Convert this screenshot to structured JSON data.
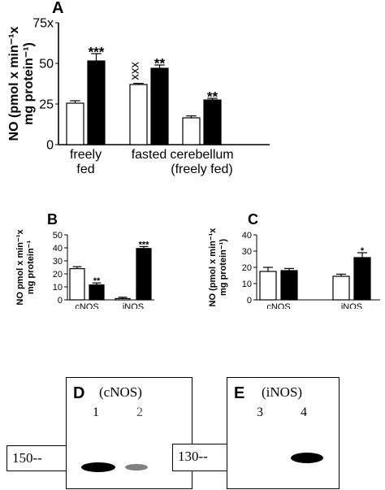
{
  "chart_data": [
    {
      "panel": "A",
      "type": "bar",
      "ylabel_lines": [
        "NO (pmol x min⁻¹x",
        "mg protein⁻¹)"
      ],
      "ylim": [
        0,
        75
      ],
      "yticks": [
        "0",
        "25",
        "50",
        "75x"
      ],
      "categories": [
        [
          "freely",
          "fed"
        ],
        [
          "fasted"
        ],
        [
          "cerebellum",
          "(freely fed)"
        ]
      ],
      "series": [
        {
          "color": "#ffffff",
          "values": [
            25.5,
            37,
            16.5
          ],
          "errors": [
            1.5,
            0.7,
            1.2
          ]
        },
        {
          "color": "#000000",
          "values": [
            51.5,
            47,
            27.5
          ],
          "errors": [
            4.5,
            2,
            1
          ]
        }
      ],
      "annotations": [
        {
          "category": 0,
          "series": 1,
          "text": "***"
        },
        {
          "category": 1,
          "series": 0,
          "text": "xxx"
        },
        {
          "category": 1,
          "series": 1,
          "text": "**"
        },
        {
          "category": 2,
          "series": 1,
          "text": "**"
        }
      ]
    },
    {
      "panel": "B",
      "type": "bar",
      "ylabel_lines": [
        "NO pmol x min⁻¹x",
        "mg protein⁻¹"
      ],
      "ylim": [
        0,
        50
      ],
      "yticks": [
        "0",
        "10",
        "20",
        "30",
        "40",
        "50"
      ],
      "categories": [
        [
          "cNOS"
        ],
        [
          "iNOS"
        ]
      ],
      "series": [
        {
          "color": "#ffffff",
          "values": [
            24,
            1
          ],
          "errors": [
            1.5,
            1
          ]
        },
        {
          "color": "#000000",
          "values": [
            11.5,
            39.5
          ],
          "errors": [
            1.5,
            1.5
          ]
        }
      ],
      "annotations": [
        {
          "category": 0,
          "series": 1,
          "text": "**"
        },
        {
          "category": 1,
          "series": 1,
          "text": "***"
        }
      ]
    },
    {
      "panel": "C",
      "type": "bar",
      "ylabel_lines": [
        "NO (pmol x min⁻¹x",
        "mg protein⁻¹)"
      ],
      "ylim": [
        0,
        40
      ],
      "yticks": [
        "0",
        "10",
        "20",
        "30",
        "40"
      ],
      "categories": [
        [
          "cNOS"
        ],
        [
          "iNOS"
        ]
      ],
      "series": [
        {
          "color": "#ffffff",
          "values": [
            17.5,
            14.5
          ],
          "errors": [
            2.5,
            1.3
          ]
        },
        {
          "color": "#000000",
          "values": [
            18,
            26
          ],
          "errors": [
            1.3,
            3
          ]
        }
      ],
      "annotations": [
        {
          "category": 1,
          "series": 1,
          "text": "*"
        }
      ]
    }
  ],
  "blots": [
    {
      "panel": "D",
      "title": "(cNOS)",
      "lanes": [
        "1",
        "2"
      ],
      "marker": "150--"
    },
    {
      "panel": "E",
      "title": "(iNOS)",
      "lanes": [
        "3",
        "4"
      ],
      "marker": "130--"
    }
  ]
}
